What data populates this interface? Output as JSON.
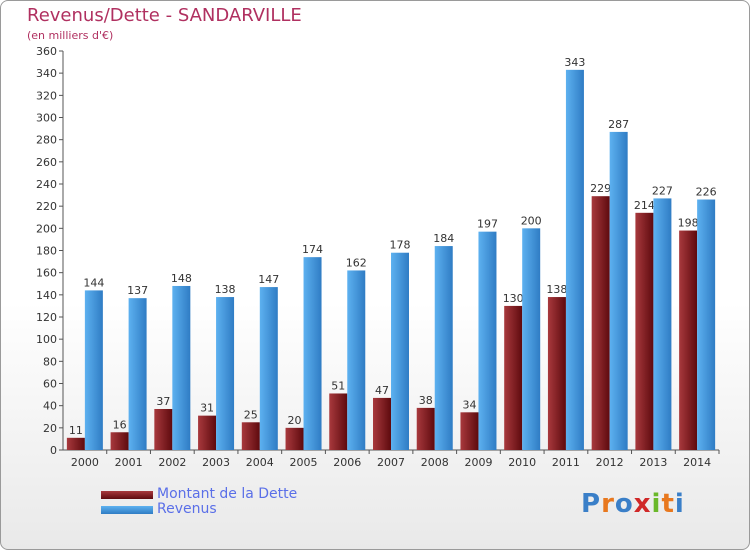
{
  "header": {
    "title": "Revenus/Dette - SANDARVILLE",
    "subtitle": "(en milliers d'€)"
  },
  "colors": {
    "dette": "#7b1418",
    "revenus": "#3a8fd8",
    "title": "#b03060",
    "legend_text": "#5a6fe8"
  },
  "chart_data": {
    "type": "bar",
    "title": "Revenus/Dette - SANDARVILLE",
    "subtitle": "(en milliers d'€)",
    "categories": [
      "2000",
      "2001",
      "2002",
      "2003",
      "2004",
      "2005",
      "2006",
      "2007",
      "2008",
      "2009",
      "2010",
      "2011",
      "2012",
      "2013",
      "2014"
    ],
    "series": [
      {
        "name": "Montant de la Dette",
        "values": [
          11,
          16,
          37,
          31,
          25,
          20,
          51,
          47,
          38,
          34,
          130,
          138,
          229,
          214,
          198
        ]
      },
      {
        "name": "Revenus",
        "values": [
          144,
          137,
          148,
          138,
          147,
          174,
          162,
          178,
          184,
          197,
          200,
          343,
          287,
          227,
          226
        ]
      }
    ],
    "ylim": [
      0,
      360
    ],
    "yticks": [
      0,
      20,
      40,
      60,
      80,
      100,
      120,
      140,
      160,
      180,
      200,
      220,
      240,
      260,
      280,
      300,
      320,
      340,
      360
    ],
    "grid": false,
    "legend_position": "bottom-left"
  },
  "legend": {
    "items": [
      {
        "label": "Montant de la Dette"
      },
      {
        "label": "Revenus"
      }
    ]
  },
  "logo": {
    "letters": [
      "P",
      "r",
      "o",
      "x",
      "i",
      "t",
      "i"
    ],
    "colors": [
      "#3a7fc8",
      "#e8781e",
      "#3a7fc8",
      "#d02828",
      "#6ab82a",
      "#e8781e",
      "#3a7fc8"
    ]
  }
}
